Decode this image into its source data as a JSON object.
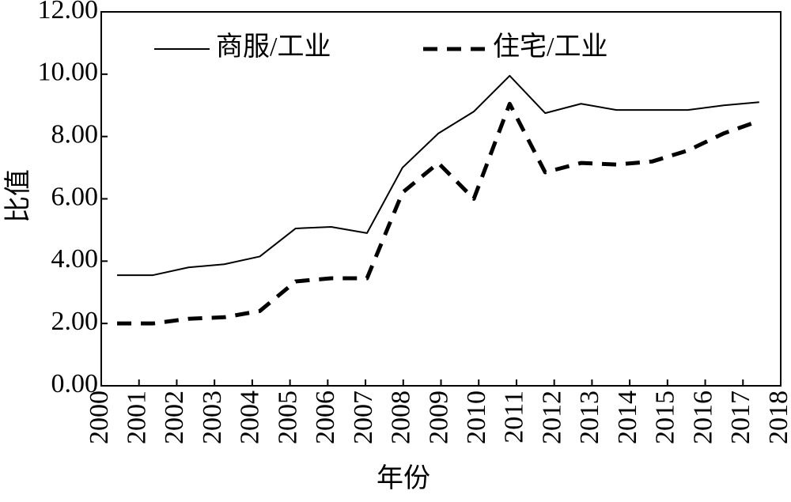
{
  "chart_data": {
    "type": "line",
    "xlabel": "年份",
    "ylabel": "比值",
    "x": [
      2000.42,
      2001.37,
      2002.31,
      2003.26,
      2004.2,
      2005.15,
      2006.09,
      2007.04,
      2007.98,
      2008.93,
      2009.87,
      2010.82,
      2011.76,
      2012.71,
      2013.65,
      2014.6,
      2015.54,
      2016.49,
      2017.43
    ],
    "series": [
      {
        "name": "商服/工业",
        "color": "#000000",
        "dash": "solid",
        "values": [
          3.55,
          3.55,
          3.8,
          3.9,
          4.15,
          5.05,
          5.1,
          4.9,
          7.0,
          8.1,
          8.8,
          9.95,
          8.75,
          9.05,
          8.85,
          8.85,
          8.85,
          9.0,
          9.1
        ]
      },
      {
        "name": "住宅/工业",
        "color": "#000000",
        "dash": "dashed",
        "values": [
          2.0,
          2.0,
          2.15,
          2.2,
          2.4,
          3.35,
          3.45,
          3.45,
          6.2,
          7.15,
          6.0,
          9.05,
          6.85,
          7.15,
          7.1,
          7.2,
          7.55,
          8.1,
          8.5
        ]
      }
    ],
    "xlim": [
      2000,
      2018
    ],
    "xticks": [
      2000,
      2001,
      2002,
      2003,
      2004,
      2005,
      2006,
      2007,
      2008,
      2009,
      2010,
      2011,
      2012,
      2013,
      2014,
      2015,
      2016,
      2017,
      2018
    ],
    "ylim": [
      0,
      12
    ],
    "yticks": [
      {
        "value": 0,
        "label": "0.00"
      },
      {
        "value": 2,
        "label": "2.00"
      },
      {
        "value": 4,
        "label": "4.00"
      },
      {
        "value": 6,
        "label": "6.00"
      },
      {
        "value": 8,
        "label": "8.00"
      },
      {
        "value": 10,
        "label": "10.00"
      },
      {
        "value": 12,
        "label": "12.00"
      }
    ],
    "legend": "top"
  }
}
